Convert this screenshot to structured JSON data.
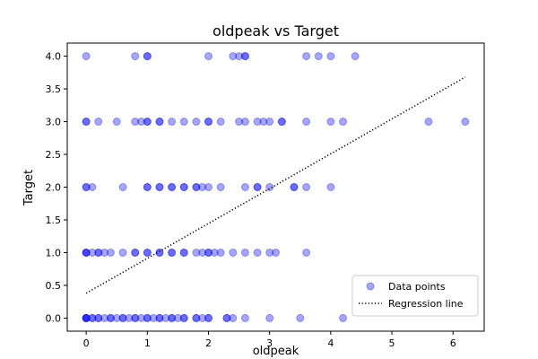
{
  "chart_data": {
    "type": "scatter",
    "title": "oldpeak vs Target",
    "xlabel": "oldpeak",
    "ylabel": "Target",
    "xlim": [
      -0.31,
      6.51
    ],
    "ylim": [
      -0.2,
      4.2
    ],
    "xticks": [
      0,
      1,
      2,
      3,
      4,
      5,
      6
    ],
    "yticks": [
      0.0,
      0.5,
      1.0,
      1.5,
      2.0,
      2.5,
      3.0,
      3.5,
      4.0
    ],
    "xtick_labels": [
      "0",
      "1",
      "2",
      "3",
      "4",
      "5",
      "6"
    ],
    "ytick_labels": [
      "0.0",
      "0.5",
      "1.0",
      "1.5",
      "2.0",
      "2.5",
      "3.0",
      "3.5",
      "4.0"
    ],
    "grid": false,
    "legend_position": "lower-right",
    "series": [
      {
        "name": "Data points",
        "kind": "scatter",
        "color": "#0000ff",
        "alpha": 0.35,
        "points": [
          [
            0.0,
            4
          ],
          [
            0.8,
            4
          ],
          [
            1.0,
            4
          ],
          [
            1.0,
            4
          ],
          [
            2.0,
            4
          ],
          [
            2.4,
            4
          ],
          [
            2.5,
            4
          ],
          [
            2.6,
            4
          ],
          [
            2.6,
            4
          ],
          [
            3.6,
            4
          ],
          [
            3.8,
            4
          ],
          [
            4.0,
            4
          ],
          [
            4.4,
            4
          ],
          [
            0.0,
            3
          ],
          [
            0.0,
            3
          ],
          [
            0.2,
            3
          ],
          [
            0.5,
            3
          ],
          [
            0.8,
            3
          ],
          [
            0.9,
            3
          ],
          [
            1.0,
            3
          ],
          [
            1.0,
            3
          ],
          [
            1.2,
            3
          ],
          [
            1.2,
            3
          ],
          [
            1.4,
            3
          ],
          [
            1.6,
            3
          ],
          [
            1.8,
            3
          ],
          [
            2.0,
            3
          ],
          [
            2.0,
            3
          ],
          [
            2.2,
            3
          ],
          [
            2.5,
            3
          ],
          [
            2.6,
            3
          ],
          [
            2.8,
            3
          ],
          [
            2.9,
            3
          ],
          [
            3.0,
            3
          ],
          [
            3.2,
            3
          ],
          [
            3.2,
            3
          ],
          [
            3.6,
            3
          ],
          [
            4.0,
            3
          ],
          [
            4.2,
            3
          ],
          [
            5.6,
            3
          ],
          [
            6.2,
            3
          ],
          [
            0.0,
            2
          ],
          [
            0.0,
            2
          ],
          [
            0.1,
            2
          ],
          [
            0.6,
            2
          ],
          [
            1.0,
            2
          ],
          [
            1.0,
            2
          ],
          [
            1.2,
            2
          ],
          [
            1.2,
            2
          ],
          [
            1.4,
            2
          ],
          [
            1.4,
            2
          ],
          [
            1.6,
            2
          ],
          [
            1.6,
            2
          ],
          [
            1.8,
            2
          ],
          [
            1.8,
            2
          ],
          [
            1.9,
            2
          ],
          [
            2.0,
            2
          ],
          [
            2.2,
            2
          ],
          [
            2.6,
            2
          ],
          [
            2.8,
            2
          ],
          [
            2.8,
            2
          ],
          [
            3.0,
            2
          ],
          [
            3.4,
            2
          ],
          [
            3.4,
            2
          ],
          [
            3.6,
            2
          ],
          [
            4.0,
            2
          ],
          [
            0.0,
            1
          ],
          [
            0.0,
            1
          ],
          [
            0.0,
            1
          ],
          [
            0.1,
            1
          ],
          [
            0.2,
            1
          ],
          [
            0.2,
            1
          ],
          [
            0.3,
            1
          ],
          [
            0.4,
            1
          ],
          [
            0.6,
            1
          ],
          [
            0.8,
            1
          ],
          [
            0.8,
            1
          ],
          [
            1.0,
            1
          ],
          [
            1.0,
            1
          ],
          [
            1.2,
            1
          ],
          [
            1.2,
            1
          ],
          [
            1.4,
            1
          ],
          [
            1.4,
            1
          ],
          [
            1.6,
            1
          ],
          [
            1.6,
            1
          ],
          [
            1.8,
            1
          ],
          [
            1.9,
            1
          ],
          [
            2.0,
            1
          ],
          [
            2.0,
            1
          ],
          [
            2.1,
            1
          ],
          [
            2.2,
            1
          ],
          [
            2.4,
            1
          ],
          [
            2.6,
            1
          ],
          [
            2.8,
            1
          ],
          [
            3.0,
            1
          ],
          [
            3.1,
            1
          ],
          [
            3.6,
            1
          ],
          [
            0.0,
            0
          ],
          [
            0.0,
            0
          ],
          [
            0.0,
            0
          ],
          [
            0.0,
            0
          ],
          [
            0.1,
            0
          ],
          [
            0.1,
            0
          ],
          [
            0.2,
            0
          ],
          [
            0.2,
            0
          ],
          [
            0.3,
            0
          ],
          [
            0.4,
            0
          ],
          [
            0.4,
            0
          ],
          [
            0.5,
            0
          ],
          [
            0.6,
            0
          ],
          [
            0.6,
            0
          ],
          [
            0.7,
            0
          ],
          [
            0.8,
            0
          ],
          [
            0.8,
            0
          ],
          [
            0.9,
            0
          ],
          [
            1.0,
            0
          ],
          [
            1.0,
            0
          ],
          [
            1.1,
            0
          ],
          [
            1.2,
            0
          ],
          [
            1.2,
            0
          ],
          [
            1.3,
            0
          ],
          [
            1.4,
            0
          ],
          [
            1.4,
            0
          ],
          [
            1.5,
            0
          ],
          [
            1.6,
            0
          ],
          [
            1.6,
            0
          ],
          [
            1.8,
            0
          ],
          [
            1.8,
            0
          ],
          [
            1.9,
            0
          ],
          [
            2.0,
            0
          ],
          [
            2.0,
            0
          ],
          [
            2.3,
            0
          ],
          [
            2.3,
            0
          ],
          [
            2.4,
            0
          ],
          [
            2.6,
            0
          ],
          [
            3.0,
            0
          ],
          [
            3.5,
            0
          ],
          [
            4.2,
            0
          ]
        ]
      },
      {
        "name": "Regression line",
        "kind": "line",
        "color": "#000000",
        "linestyle": "dotted",
        "points": [
          [
            0.0,
            0.38
          ],
          [
            6.2,
            3.68
          ]
        ]
      }
    ]
  }
}
